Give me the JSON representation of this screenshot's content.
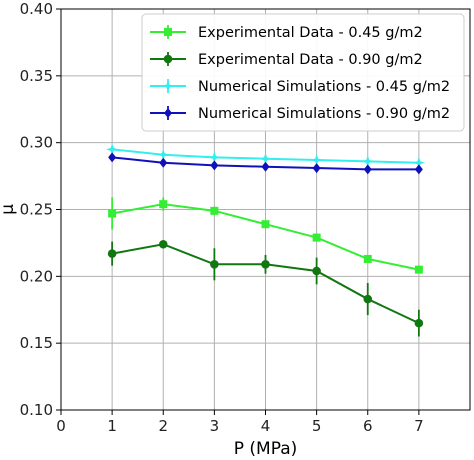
{
  "chart_data": {
    "type": "line",
    "xlabel": "P (MPa)",
    "ylabel": "μ",
    "xlim": [
      0,
      8
    ],
    "ylim": [
      0.1,
      0.4
    ],
    "xticks": [
      "0",
      "1",
      "2",
      "3",
      "4",
      "5",
      "6",
      "7"
    ],
    "yticks": [
      "0.10",
      "0.15",
      "0.20",
      "0.25",
      "0.30",
      "0.35",
      "0.40"
    ],
    "grid": true,
    "legend_position": "top-right",
    "x": [
      1,
      2,
      3,
      4,
      5,
      6,
      7
    ],
    "series": [
      {
        "name": "Experimental Data - 0.45 g/m2",
        "color": "#33ee33",
        "marker": "square",
        "values": [
          0.247,
          0.254,
          0.249,
          0.239,
          0.229,
          0.213,
          0.205
        ],
        "errors": [
          0.012,
          0.005,
          0.003,
          0.002,
          0.002,
          0.002,
          0.002
        ]
      },
      {
        "name": "Experimental Data - 0.90 g/m2",
        "color": "#117711",
        "marker": "circle",
        "values": [
          0.217,
          0.224,
          0.209,
          0.209,
          0.204,
          0.183,
          0.165
        ],
        "errors": [
          0.009,
          0.002,
          0.012,
          0.007,
          0.01,
          0.012,
          0.01
        ]
      },
      {
        "name": "Numerical Simulations - 0.45 g/m2",
        "color": "#33eeee",
        "marker": "star",
        "values": [
          0.295,
          0.291,
          0.289,
          0.288,
          0.287,
          0.286,
          0.285
        ],
        "errors": [
          0.002,
          0.002,
          0.002,
          0.002,
          0.002,
          0.002,
          0.002
        ]
      },
      {
        "name": "Numerical Simulations - 0.90 g/m2",
        "color": "#1111bb",
        "marker": "diamond",
        "values": [
          0.289,
          0.285,
          0.283,
          0.282,
          0.281,
          0.28,
          0.28
        ],
        "errors": [
          0.002,
          0.002,
          0.002,
          0.002,
          0.002,
          0.002,
          0.002
        ]
      }
    ]
  }
}
